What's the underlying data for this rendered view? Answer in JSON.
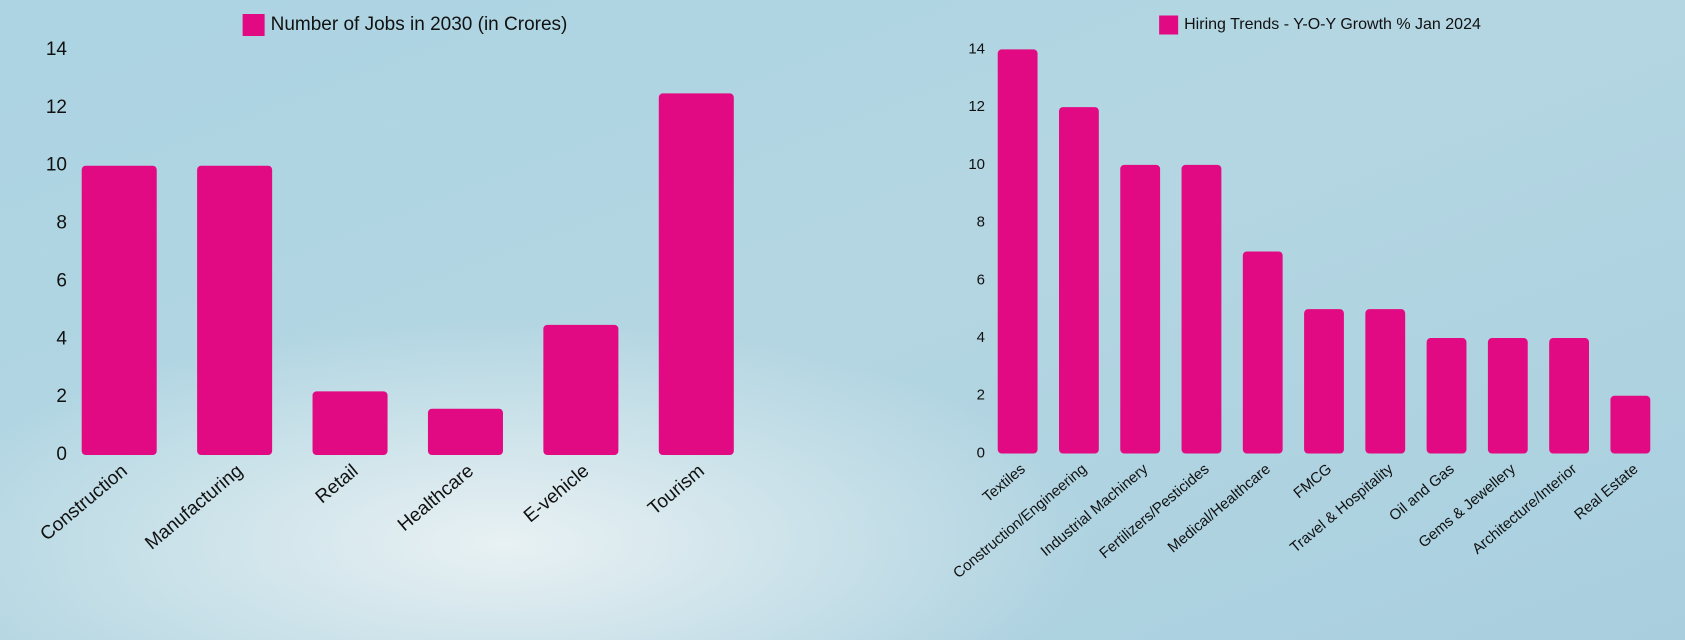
{
  "chart_data": [
    {
      "type": "bar",
      "legend": "Number of Jobs in 2030 (in Crores)",
      "color": "#e20a82",
      "categories": [
        "Construction",
        "Manufacturing",
        "Retail",
        "Healthcare",
        "E-vehicle",
        "Tourism"
      ],
      "values": [
        10,
        10,
        2.2,
        1.6,
        4.5,
        12.5
      ],
      "ylim": [
        0,
        14
      ],
      "yticks": [
        0,
        2,
        4,
        6,
        8,
        10,
        12,
        14
      ]
    },
    {
      "type": "bar",
      "legend": "Hiring Trends - Y-O-Y Growth % Jan 2024",
      "color": "#e20a82",
      "categories": [
        "Textiles",
        "Construction/Engineering",
        "Industrial Machinery",
        "Fertilizers/Pesticides",
        "Medical/Healthcare",
        "FMCG",
        "Travel & Hospitality",
        "Oil and Gas",
        "Gems & Jewellery",
        "Architecture/Interior",
        "Real Estate"
      ],
      "values": [
        14,
        12,
        10,
        10,
        7,
        5,
        5,
        4,
        4,
        4,
        2
      ],
      "ylim": [
        0,
        14
      ],
      "yticks": [
        0,
        2,
        4,
        6,
        8,
        10,
        12,
        14
      ]
    }
  ]
}
